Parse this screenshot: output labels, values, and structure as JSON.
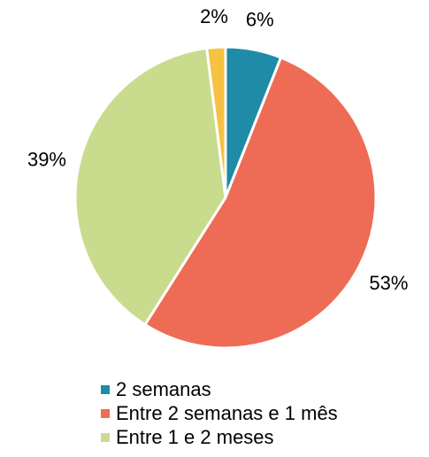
{
  "chart_data": {
    "type": "pie",
    "categories": [
      "2 semanas",
      "Entre 2 semanas e 1 mês",
      "Entre 1 e 2 meses",
      null
    ],
    "values": [
      6,
      53,
      39,
      2
    ],
    "value_labels": [
      "6%",
      "53%",
      "39%",
      "2%"
    ],
    "colors": [
      "#1f8ba6",
      "#ee6c55",
      "#c9dc8e",
      "#f7c242"
    ],
    "legend": "bottom"
  }
}
